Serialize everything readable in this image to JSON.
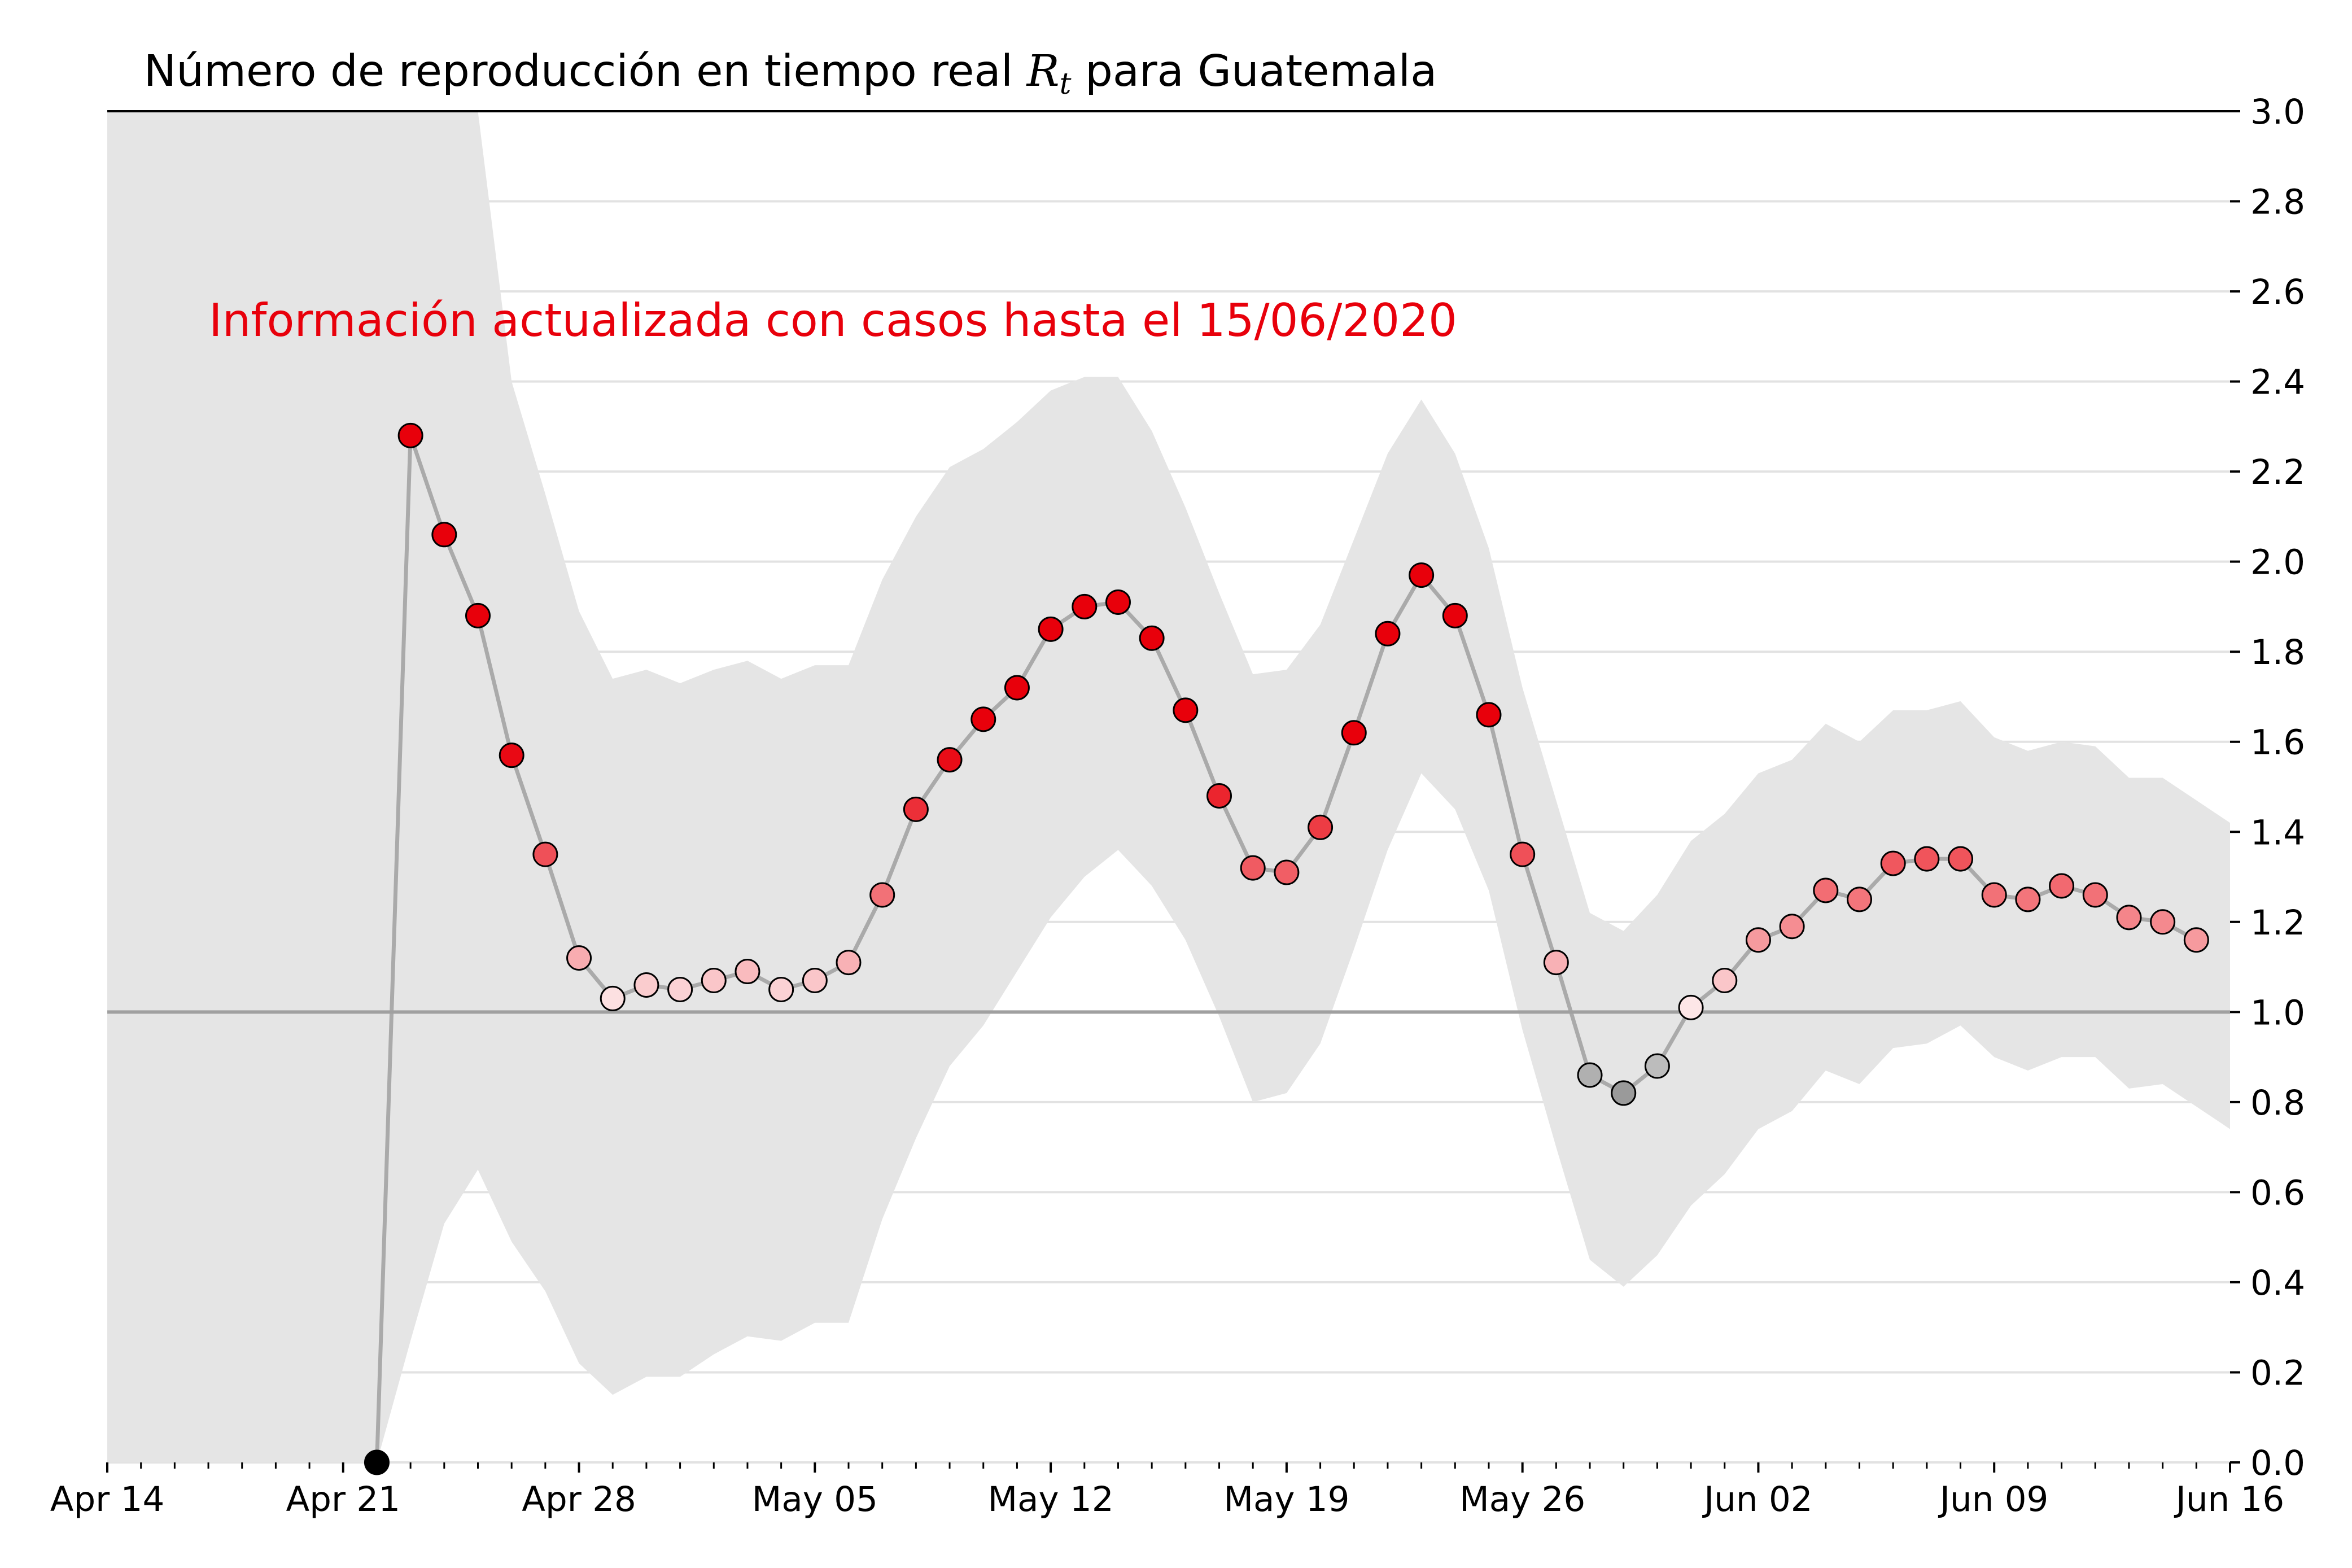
{
  "chart_data": {
    "type": "line",
    "title_prefix": "Número de reproducción en tiempo real ",
    "title_symbol": "R",
    "title_subscript": "t",
    "title_suffix": " para Guatemala",
    "annotation": "Información actualizada con casos hasta el 15/06/2020",
    "annotation_color": "#e8000b",
    "xlabel": "",
    "ylabel": "",
    "x_range": [
      "2020-04-14",
      "2020-06-16"
    ],
    "ylim": [
      0.0,
      3.0
    ],
    "y_ticks": [
      "0.0",
      "0.2",
      "0.4",
      "0.6",
      "0.8",
      "1.0",
      "1.2",
      "1.4",
      "1.6",
      "1.8",
      "2.0",
      "2.2",
      "2.4",
      "2.6",
      "2.8",
      "3.0"
    ],
    "x_ticks": [
      {
        "date": "2020-04-14",
        "label": "Apr 14"
      },
      {
        "date": "2020-04-21",
        "label": "Apr 21"
      },
      {
        "date": "2020-04-28",
        "label": "Apr 28"
      },
      {
        "date": "2020-05-05",
        "label": "May 05"
      },
      {
        "date": "2020-05-12",
        "label": "May 12"
      },
      {
        "date": "2020-05-19",
        "label": "May 19"
      },
      {
        "date": "2020-05-26",
        "label": "May 26"
      },
      {
        "date": "2020-06-02",
        "label": "Jun 02"
      },
      {
        "date": "2020-06-09",
        "label": "Jun 09"
      },
      {
        "date": "2020-06-16",
        "label": "Jun 16"
      }
    ],
    "reference_line": 1.0,
    "grid": "horizontal",
    "colors": {
      "band": "#e5e5e5",
      "line": "#a0a0a0",
      "reference": "#a0a0a0",
      "high": "#e8000b",
      "low": "#9a9a9a"
    },
    "series": [
      {
        "dates": [
          "2020-04-22",
          "2020-04-23",
          "2020-04-24",
          "2020-04-25",
          "2020-04-26",
          "2020-04-27",
          "2020-04-28",
          "2020-04-29",
          "2020-04-30",
          "2020-05-01",
          "2020-05-02",
          "2020-05-03",
          "2020-05-04",
          "2020-05-05",
          "2020-05-06",
          "2020-05-07",
          "2020-05-08",
          "2020-05-09",
          "2020-05-10",
          "2020-05-11",
          "2020-05-12",
          "2020-05-13",
          "2020-05-14",
          "2020-05-15",
          "2020-05-16",
          "2020-05-17",
          "2020-05-18",
          "2020-05-19",
          "2020-05-20",
          "2020-05-21",
          "2020-05-22",
          "2020-05-23",
          "2020-05-24",
          "2020-05-25",
          "2020-05-26",
          "2020-05-27",
          "2020-05-28",
          "2020-05-29",
          "2020-05-30",
          "2020-05-31",
          "2020-06-01",
          "2020-06-02",
          "2020-06-03",
          "2020-06-04",
          "2020-06-05",
          "2020-06-06",
          "2020-06-07",
          "2020-06-08",
          "2020-06-09",
          "2020-06-10",
          "2020-06-11",
          "2020-06-12",
          "2020-06-13",
          "2020-06-14",
          "2020-06-15"
        ],
        "values": [
          0.0,
          2.28,
          2.06,
          1.88,
          1.57,
          1.35,
          1.12,
          1.03,
          1.06,
          1.05,
          1.07,
          1.09,
          1.05,
          1.07,
          1.11,
          1.26,
          1.45,
          1.56,
          1.65,
          1.72,
          1.85,
          1.9,
          1.91,
          1.83,
          1.67,
          1.48,
          1.32,
          1.31,
          1.41,
          1.62,
          1.84,
          1.97,
          1.88,
          1.66,
          1.35,
          1.11,
          0.86,
          0.82,
          0.88,
          1.01,
          1.07,
          1.16,
          1.19,
          1.27,
          1.25,
          1.33,
          1.34,
          1.34,
          1.26,
          1.25,
          1.28,
          1.26,
          1.21,
          1.2,
          1.16
        ]
      }
    ],
    "band": {
      "dates": [
        "2020-04-14",
        "2020-04-21",
        "2020-04-22",
        "2020-04-23",
        "2020-04-24",
        "2020-04-25",
        "2020-04-26",
        "2020-04-27",
        "2020-04-28",
        "2020-04-29",
        "2020-04-30",
        "2020-05-01",
        "2020-05-02",
        "2020-05-03",
        "2020-05-04",
        "2020-05-05",
        "2020-05-06",
        "2020-05-07",
        "2020-05-08",
        "2020-05-09",
        "2020-05-10",
        "2020-05-11",
        "2020-05-12",
        "2020-05-13",
        "2020-05-14",
        "2020-05-15",
        "2020-05-16",
        "2020-05-17",
        "2020-05-18",
        "2020-05-19",
        "2020-05-20",
        "2020-05-21",
        "2020-05-22",
        "2020-05-23",
        "2020-05-24",
        "2020-05-25",
        "2020-05-26",
        "2020-05-27",
        "2020-05-28",
        "2020-05-29",
        "2020-05-30",
        "2020-05-31",
        "2020-06-01",
        "2020-06-02",
        "2020-06-03",
        "2020-06-04",
        "2020-06-05",
        "2020-06-06",
        "2020-06-07",
        "2020-06-08",
        "2020-06-09",
        "2020-06-10",
        "2020-06-11",
        "2020-06-12",
        "2020-06-13",
        "2020-06-14",
        "2020-06-15",
        "2020-06-16"
      ],
      "low": [
        0.0,
        0.0,
        0.0,
        0.27,
        0.53,
        0.65,
        0.49,
        0.38,
        0.22,
        0.15,
        0.19,
        0.19,
        0.24,
        0.28,
        0.27,
        0.31,
        0.31,
        0.54,
        0.72,
        0.88,
        0.97,
        1.09,
        1.21,
        1.3,
        1.36,
        1.28,
        1.16,
        0.99,
        0.8,
        0.82,
        0.93,
        1.14,
        1.36,
        1.53,
        1.45,
        1.27,
        0.96,
        0.7,
        0.45,
        0.39,
        0.46,
        0.57,
        0.64,
        0.74,
        0.78,
        0.87,
        0.84,
        0.92,
        0.93,
        0.97,
        0.9,
        0.87,
        0.9,
        0.9,
        0.83,
        0.84,
        0.79,
        0.74
      ],
      "high": [
        3.0,
        3.0,
        3.0,
        3.0,
        3.0,
        3.0,
        2.4,
        2.15,
        1.89,
        1.74,
        1.76,
        1.73,
        1.76,
        1.78,
        1.74,
        1.77,
        1.77,
        1.96,
        2.1,
        2.21,
        2.25,
        2.31,
        2.38,
        2.41,
        2.41,
        2.29,
        2.12,
        1.93,
        1.75,
        1.76,
        1.86,
        2.05,
        2.24,
        2.36,
        2.24,
        2.03,
        1.72,
        1.47,
        1.22,
        1.18,
        1.26,
        1.38,
        1.44,
        1.53,
        1.56,
        1.64,
        1.6,
        1.67,
        1.67,
        1.69,
        1.61,
        1.58,
        1.6,
        1.59,
        1.52,
        1.52,
        1.47,
        1.42
      ]
    }
  }
}
